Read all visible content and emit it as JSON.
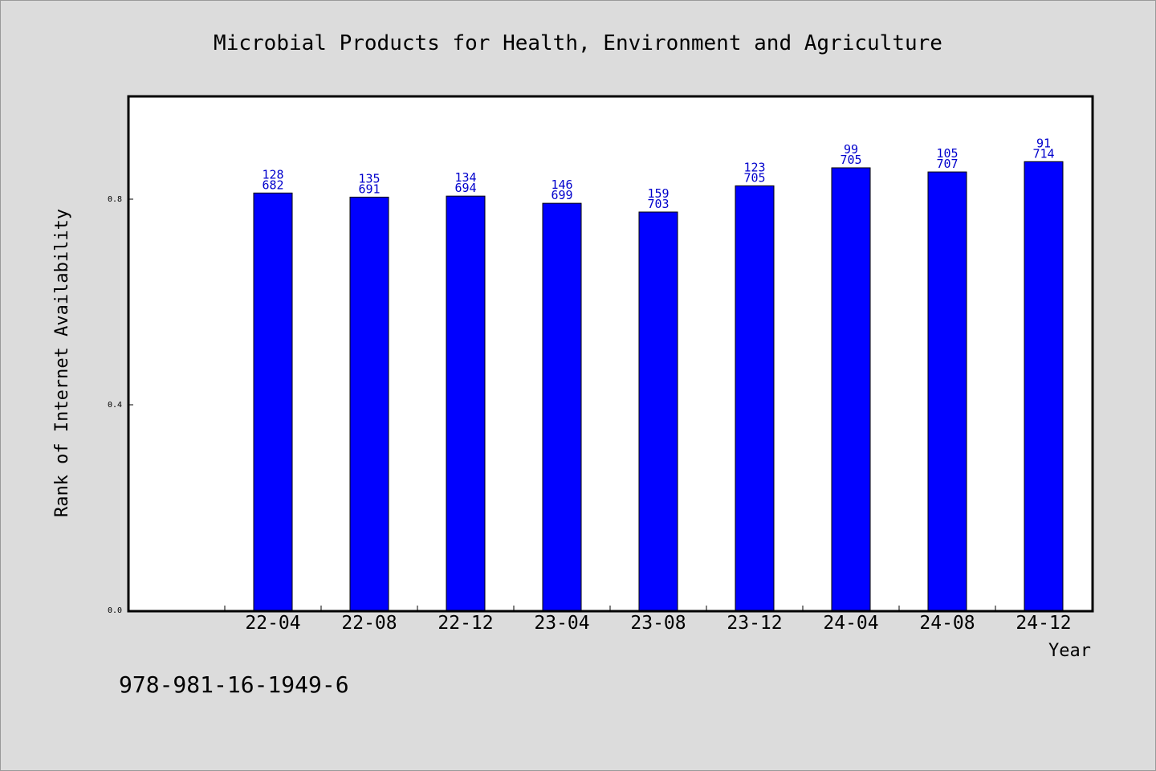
{
  "chart_data": {
    "type": "bar",
    "title": "Microbial Products for Health, Environment and Agriculture",
    "xlabel": "Year",
    "ylabel": "Rank of Internet Availability",
    "categories": [
      "22-04",
      "22-08",
      "22-12",
      "23-04",
      "23-08",
      "23-12",
      "24-04",
      "24-08",
      "24-12"
    ],
    "values": [
      0.812,
      0.804,
      0.806,
      0.792,
      0.775,
      0.826,
      0.861,
      0.853,
      0.873
    ],
    "labels_top": [
      "128",
      "135",
      "134",
      "146",
      "159",
      "123",
      "99",
      "105",
      "91"
    ],
    "labels_bottom": [
      "682",
      "691",
      "694",
      "699",
      "703",
      "705",
      "705",
      "707",
      "714"
    ],
    "ylim": [
      0,
      1.0
    ],
    "yticks": [
      "0.0",
      "0.4",
      "0.8"
    ],
    "ytick_values": [
      0,
      0.4,
      0.8
    ],
    "grid": false,
    "bar_color": "#0000ff",
    "label_color": "#0000cc"
  },
  "footer": {
    "isbn": "978-981-16-1949-6"
  }
}
